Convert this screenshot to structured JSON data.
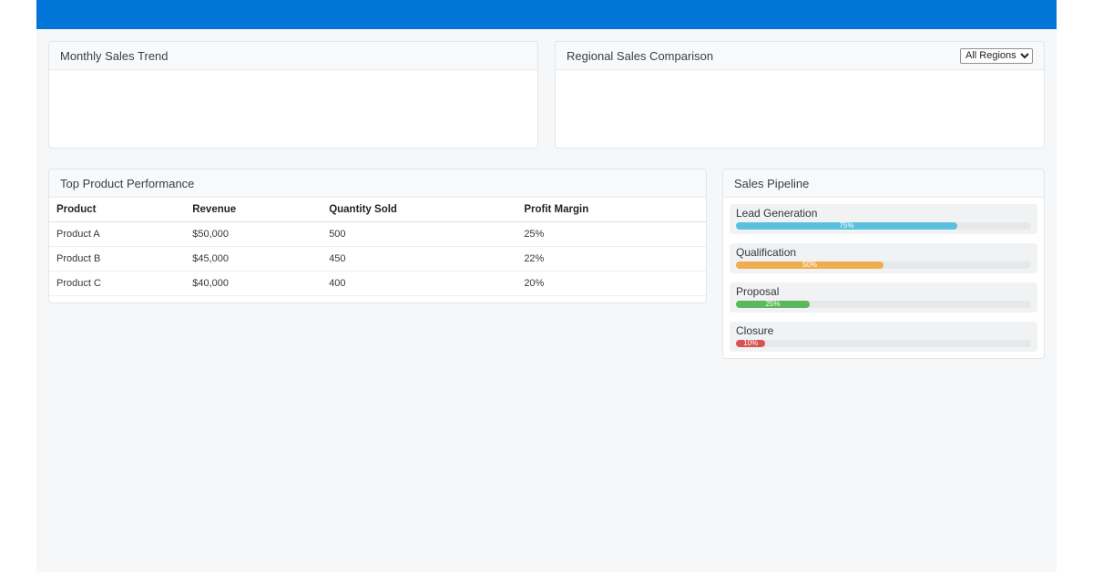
{
  "theme": {
    "topbar_color": "#0275d8",
    "page_bg": "#f6f7f9",
    "panel_header_bg": "#f8f9fa"
  },
  "panels": {
    "monthly_sales": {
      "title": "Monthly Sales Trend"
    },
    "regional_sales": {
      "title": "Regional Sales Comparison",
      "filter": {
        "selected": "All Regions"
      }
    },
    "top_products": {
      "title": "Top Product Performance",
      "columns": [
        "Product",
        "Revenue",
        "Quantity Sold",
        "Profit Margin"
      ],
      "rows": [
        [
          "Product A",
          "$50,000",
          "500",
          "25%"
        ],
        [
          "Product B",
          "$45,000",
          "450",
          "22%"
        ],
        [
          "Product C",
          "$40,000",
          "400",
          "20%"
        ]
      ]
    },
    "pipeline": {
      "title": "Sales Pipeline",
      "stages": [
        {
          "label": "Lead Generation",
          "percent": 75,
          "percent_label": "75%",
          "color": "#5bc0de"
        },
        {
          "label": "Qualification",
          "percent": 50,
          "percent_label": "50%",
          "color": "#f0ad4e"
        },
        {
          "label": "Proposal",
          "percent": 25,
          "percent_label": "25%",
          "color": "#5cb85c"
        },
        {
          "label": "Closure",
          "percent": 10,
          "percent_label": "10%",
          "color": "#d9534f"
        }
      ]
    }
  }
}
